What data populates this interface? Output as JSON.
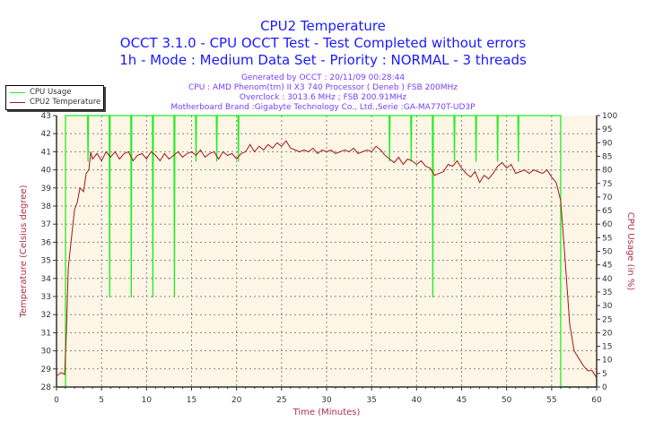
{
  "header": {
    "title": "CPU2 Temperature",
    "subtitle1": "OCCT 3.1.0 - CPU OCCT Test - Test Completed without errors",
    "subtitle2": "1h - Mode : Medium Data Set - Priority : NORMAL - 3 threads",
    "info": [
      "Generated by OCCT : 20/11/09 00:28:44",
      "CPU : AMD Phenom(tm) II X3 740 Processor ( Deneb ) FSB 200MHz",
      "Overclock : 3013.6 MHz ; FSB 200.91MHz",
      "Motherboard Brand :Gigabyte Technology Co., Ltd.,Serie :GA-MA770T-UD3P"
    ]
  },
  "colors": {
    "title": "#1a1aff",
    "info": "#7a3cff",
    "temperature": "#a01818",
    "cpu_usage": "#22ee22",
    "plot_bg": "#fdf5e6",
    "axis_label": "#b0304a"
  },
  "chart_data": {
    "type": "line",
    "xlabel": "Time (Minutes)",
    "ylabel": "Temperature (Celsius degree)",
    "y2label": "CPU Usage (in %)",
    "xlim": [
      0,
      60
    ],
    "ylim": [
      28,
      43
    ],
    "y2lim": [
      0,
      100
    ],
    "xticks": [
      "0",
      "5",
      "10",
      "15",
      "20",
      "25",
      "30",
      "35",
      "40",
      "45",
      "50",
      "55",
      "60"
    ],
    "yticks": [
      "28",
      "29",
      "30",
      "31",
      "32",
      "33",
      "34",
      "35",
      "36",
      "37",
      "38",
      "39",
      "40",
      "41",
      "42",
      "43"
    ],
    "y2ticks": [
      "0",
      "5",
      "10",
      "15",
      "20",
      "25",
      "30",
      "35",
      "40",
      "45",
      "50",
      "55",
      "60",
      "65",
      "70",
      "75",
      "80",
      "85",
      "90",
      "95",
      "100"
    ],
    "grid": true,
    "legend_position": "top-left",
    "series": [
      {
        "name": "CPU Usage",
        "axis": "right",
        "points": [
          [
            0,
            0
          ],
          [
            1,
            0
          ],
          [
            1,
            100
          ],
          [
            3.45,
            100
          ],
          [
            3.5,
            83
          ],
          [
            3.55,
            100
          ],
          [
            5.85,
            100
          ],
          [
            5.9,
            33
          ],
          [
            5.95,
            100
          ],
          [
            8.25,
            100
          ],
          [
            8.3,
            33
          ],
          [
            8.35,
            100
          ],
          [
            10.65,
            100
          ],
          [
            10.7,
            33
          ],
          [
            10.75,
            100
          ],
          [
            13.05,
            100
          ],
          [
            13.1,
            33
          ],
          [
            13.15,
            100
          ],
          [
            15.45,
            100
          ],
          [
            15.5,
            83
          ],
          [
            15.55,
            100
          ],
          [
            17.75,
            100
          ],
          [
            17.8,
            83
          ],
          [
            17.85,
            100
          ],
          [
            20.15,
            100
          ],
          [
            20.2,
            83
          ],
          [
            20.25,
            100
          ],
          [
            36.95,
            100
          ],
          [
            37,
            83
          ],
          [
            37.05,
            100
          ],
          [
            39.35,
            100
          ],
          [
            39.4,
            83
          ],
          [
            39.45,
            100
          ],
          [
            41.75,
            100
          ],
          [
            41.8,
            33
          ],
          [
            41.85,
            100
          ],
          [
            44.15,
            100
          ],
          [
            44.2,
            83
          ],
          [
            44.25,
            100
          ],
          [
            46.55,
            100
          ],
          [
            46.6,
            83
          ],
          [
            46.65,
            100
          ],
          [
            48.95,
            100
          ],
          [
            49,
            83
          ],
          [
            49.05,
            100
          ],
          [
            51.25,
            100
          ],
          [
            51.3,
            83
          ],
          [
            51.35,
            100
          ],
          [
            56,
            100
          ],
          [
            56,
            0
          ],
          [
            60,
            0
          ]
        ]
      },
      {
        "name": "CPU2 Temperature",
        "axis": "left",
        "x": [
          0,
          0.5,
          0.9,
          1.1,
          1.3,
          1.6,
          2,
          2.3,
          2.6,
          3,
          3.3,
          3.6,
          3.8,
          4,
          4.5,
          5,
          5.5,
          6,
          6.5,
          7,
          7.5,
          8,
          8.5,
          9,
          9.5,
          10,
          10.5,
          11,
          11.5,
          12,
          12.5,
          13,
          13.5,
          14,
          14.5,
          15,
          15.5,
          16,
          16.5,
          17,
          17.5,
          18,
          18.5,
          19,
          19.5,
          20,
          20.5,
          21,
          21.5,
          22,
          22.5,
          23,
          23.5,
          24,
          24.5,
          25,
          25.5,
          26,
          26.5,
          27,
          27.5,
          28,
          28.5,
          29,
          29.5,
          30,
          30.5,
          31,
          31.5,
          32,
          32.5,
          33,
          33.5,
          34,
          34.5,
          35,
          35.5,
          36,
          36.5,
          37,
          37.5,
          38,
          38.5,
          39,
          39.5,
          40,
          40.5,
          41,
          41.5,
          42,
          42.5,
          43,
          43.5,
          44,
          44.5,
          45,
          45.5,
          46,
          46.5,
          47,
          47.5,
          48,
          48.5,
          49,
          49.5,
          50,
          50.5,
          51,
          51.5,
          52,
          52.5,
          53,
          53.5,
          54,
          54.5,
          55,
          55.5,
          56,
          56.5,
          57,
          57.5,
          58,
          58.5,
          59,
          59.5,
          60
        ],
        "y": [
          28.6,
          28.8,
          28.7,
          31,
          34.5,
          36,
          37.8,
          38.2,
          39,
          38.8,
          39.8,
          40,
          41,
          40.6,
          40.9,
          40.5,
          41,
          40.7,
          41,
          40.6,
          40.9,
          41,
          40.5,
          40.8,
          40.9,
          40.6,
          41,
          40.8,
          40.5,
          40.9,
          40.6,
          40.8,
          41,
          40.7,
          40.9,
          41,
          40.8,
          41.1,
          40.7,
          40.9,
          41,
          40.6,
          41,
          40.8,
          40.9,
          40.6,
          40.9,
          41,
          41.4,
          41,
          41.3,
          41.1,
          41.4,
          41.2,
          41.5,
          41.3,
          41.6,
          41.2,
          41.1,
          41,
          41.1,
          41,
          41.2,
          40.9,
          41.1,
          41,
          41.1,
          40.9,
          41,
          41.1,
          41,
          41.2,
          40.9,
          41,
          41.1,
          41,
          41.3,
          41.1,
          40.8,
          40.6,
          40.4,
          40.7,
          40.3,
          40.6,
          40.5,
          40.3,
          40.5,
          40.2,
          40.1,
          39.7,
          39.8,
          39.9,
          40.3,
          40.2,
          40.5,
          40.1,
          39.8,
          39.6,
          39.9,
          39.3,
          39.7,
          39.5,
          39.8,
          40.2,
          40.4,
          40.1,
          40.3,
          39.8,
          39.9,
          40,
          39.8,
          40,
          39.9,
          39.8,
          40,
          39.6,
          39.3,
          38.3,
          35,
          31.5,
          30,
          29.6,
          29.2,
          28.9,
          28.9,
          28.5
        ]
      }
    ]
  }
}
